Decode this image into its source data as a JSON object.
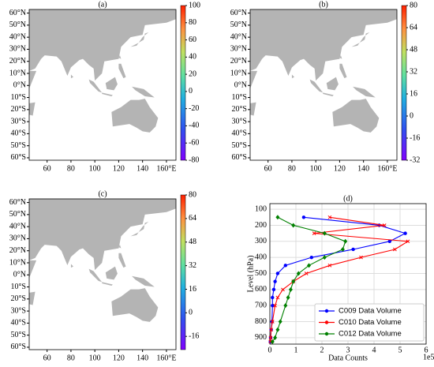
{
  "chart_data": [
    {
      "type": "map",
      "title": "(a)",
      "xlim": [
        45,
        168
      ],
      "ylim": [
        -62,
        63
      ],
      "xticks": [
        60,
        80,
        100,
        120,
        140,
        {
          "value": 160,
          "label": "160°E"
        }
      ],
      "yticks": [
        {
          "value": 60,
          "label": "60°N"
        },
        {
          "value": 50,
          "label": "50°N"
        },
        {
          "value": 40,
          "label": "40°N"
        },
        {
          "value": 30,
          "label": "30°N"
        },
        {
          "value": 20,
          "label": "20°N"
        },
        {
          "value": 10,
          "label": "10°N"
        },
        {
          "value": 0,
          "label": "0°N"
        },
        {
          "value": -10,
          "label": "10°S"
        },
        {
          "value": -20,
          "label": "20°S"
        },
        {
          "value": -30,
          "label": "30°S"
        },
        {
          "value": -40,
          "label": "40°S"
        },
        {
          "value": -50,
          "label": "50°S"
        },
        {
          "value": -60,
          "label": "60°S"
        }
      ],
      "colorbar": {
        "lim": [
          -80,
          100
        ],
        "ticks": [
          100,
          80,
          60,
          40,
          20,
          0,
          -20,
          -40,
          -60,
          -80
        ]
      }
    },
    {
      "type": "map",
      "title": "(b)",
      "xlim": [
        45,
        168
      ],
      "ylim": [
        -62,
        63
      ],
      "xticks": [
        60,
        80,
        100,
        120,
        140,
        {
          "value": 160,
          "label": "160°E"
        }
      ],
      "yticks": [
        {
          "value": 60,
          "label": "60°N"
        },
        {
          "value": 50,
          "label": "50°N"
        },
        {
          "value": 40,
          "label": "40°N"
        },
        {
          "value": 30,
          "label": "30°N"
        },
        {
          "value": 20,
          "label": "20°N"
        },
        {
          "value": 10,
          "label": "10°N"
        },
        {
          "value": 0,
          "label": "0°N"
        },
        {
          "value": -10,
          "label": "10°S"
        },
        {
          "value": -20,
          "label": "20°S"
        },
        {
          "value": -30,
          "label": "30°S"
        },
        {
          "value": -40,
          "label": "40°S"
        },
        {
          "value": -50,
          "label": "50°S"
        },
        {
          "value": -60,
          "label": "60°S"
        }
      ],
      "colorbar": {
        "lim": [
          -32,
          80
        ],
        "ticks": [
          80,
          64,
          48,
          32,
          16,
          0,
          -16,
          -32
        ]
      }
    },
    {
      "type": "map",
      "title": "(c)",
      "xlim": [
        45,
        168
      ],
      "ylim": [
        -62,
        63
      ],
      "xticks": [
        60,
        80,
        100,
        120,
        140,
        {
          "value": 160,
          "label": "160°E"
        }
      ],
      "yticks": [
        {
          "value": 60,
          "label": "60°N"
        },
        {
          "value": 50,
          "label": "50°N"
        },
        {
          "value": 40,
          "label": "40°N"
        },
        {
          "value": 30,
          "label": "30°N"
        },
        {
          "value": 20,
          "label": "20°N"
        },
        {
          "value": 10,
          "label": "10°N"
        },
        {
          "value": 0,
          "label": "0°N"
        },
        {
          "value": -10,
          "label": "10°S"
        },
        {
          "value": -20,
          "label": "20°S"
        },
        {
          "value": -30,
          "label": "30°S"
        },
        {
          "value": -40,
          "label": "40°S"
        },
        {
          "value": -50,
          "label": "50°S"
        },
        {
          "value": -60,
          "label": "60°S"
        }
      ],
      "colorbar": {
        "lim": [
          -25,
          80
        ],
        "ticks": [
          80,
          64,
          48,
          32,
          16,
          0,
          -16
        ]
      }
    },
    {
      "type": "line",
      "title": "(d)",
      "y_label": "Level (hPa)",
      "x_label": "Data Counts",
      "x_offset_label": "1e5",
      "xlim": [
        0,
        6
      ],
      "xticks": [
        0,
        1,
        2,
        3,
        4,
        5,
        6
      ],
      "ylim": [
        940,
        65
      ],
      "yticks": [
        100,
        200,
        300,
        400,
        500,
        600,
        700,
        800,
        900
      ],
      "grid": true,
      "legend": "lower right",
      "y": [
        150,
        200,
        250,
        300,
        350,
        400,
        450,
        500,
        550,
        600,
        650,
        700,
        800,
        850,
        900,
        925
      ],
      "series": [
        {
          "name": "C009 Data Volume",
          "color": "#0000ff",
          "marker": "circle",
          "values": [
            1.3,
            4.2,
            5.2,
            4.6,
            3.2,
            1.6,
            0.6,
            0.3,
            0.2,
            0.15,
            0.1,
            0.1,
            0.08,
            0.05,
            0.03,
            0.02
          ]
        },
        {
          "name": "C010 Data Volume",
          "color": "#ff0000",
          "marker": "x",
          "values": [
            2.3,
            4.4,
            1.7,
            5.3,
            4.8,
            3.5,
            2.3,
            1.4,
            0.9,
            0.5,
            0.3,
            0.2,
            0.1,
            0.05,
            0.03,
            0.02
          ]
        },
        {
          "name": "C012 Data Volume",
          "color": "#008000",
          "marker": "diamond",
          "values": [
            0.3,
            0.9,
            2.1,
            2.9,
            2.8,
            2.1,
            1.5,
            1.1,
            0.9,
            0.8,
            0.7,
            0.6,
            0.4,
            0.3,
            0.2,
            0.1
          ]
        }
      ]
    }
  ]
}
